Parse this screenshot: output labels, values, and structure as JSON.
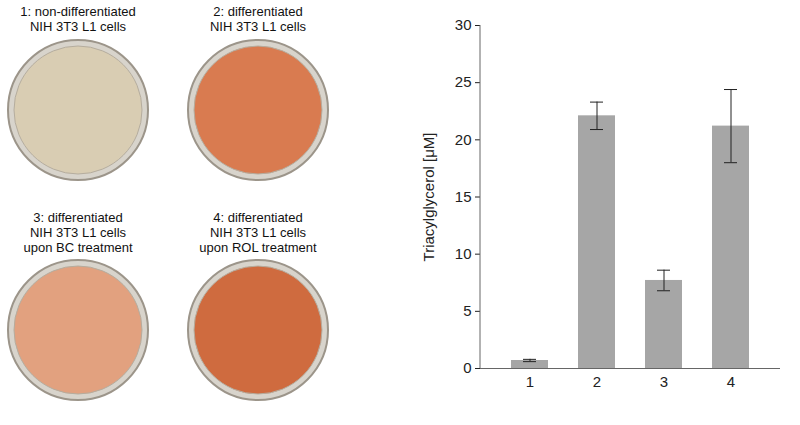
{
  "chart_data": {
    "type": "bar",
    "categories": [
      "1",
      "2",
      "3",
      "4"
    ],
    "values": [
      0.7,
      22.1,
      7.7,
      21.2
    ],
    "errors": [
      0.1,
      1.2,
      0.9,
      3.2
    ],
    "color": "#a6a6a6",
    "y_label": "Triacylglycerol [μM]",
    "ylim": [
      0,
      30
    ],
    "yticks": [
      0,
      5,
      10,
      15,
      20,
      25,
      30
    ],
    "grid": false
  },
  "dishes": [
    {
      "label": [
        "1: non-differentiated",
        "NIH 3T3 L1 cells"
      ],
      "color": "#d9cdb3"
    },
    {
      "label": [
        "2: differentiated",
        "NIH 3T3 L1 cells"
      ],
      "color": "#d97b50"
    },
    {
      "label": [
        "3: differentiated",
        "NIH 3T3 L1 cells",
        "upon BC treatment"
      ],
      "color": "#e2a17f"
    },
    {
      "label": [
        "4: differentiated",
        "NIH 3T3 L1 cells",
        "upon ROL treatment"
      ],
      "color": "#cf6b3f"
    }
  ]
}
